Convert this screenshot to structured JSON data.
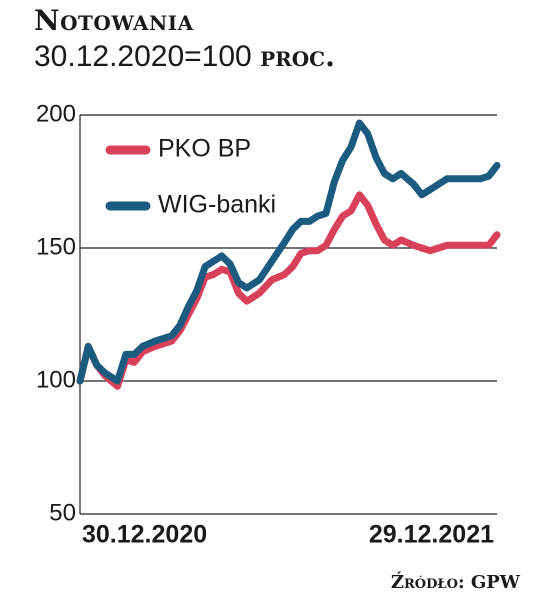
{
  "header": {
    "title": "Notowania",
    "subtitle_main": "30.12.2020=100",
    "subtitle_unit": "proc."
  },
  "source": "Źródło: GPW",
  "chart_data": {
    "type": "line",
    "xlabel": "",
    "ylabel": "",
    "ylim": [
      50,
      200
    ],
    "yticks": [
      50,
      100,
      150,
      200
    ],
    "xtick_labels": [
      "30.12.2020",
      "29.12.2021"
    ],
    "grid": "horizontal",
    "legend_position": "top-left",
    "x": [
      0,
      2,
      4,
      6,
      9,
      11,
      13,
      15,
      18,
      20,
      22,
      24,
      26,
      28,
      30,
      32,
      34,
      36,
      38,
      40,
      43,
      46,
      49,
      51,
      53,
      55,
      57,
      59,
      61,
      63,
      65,
      67,
      69,
      71,
      73,
      75,
      77,
      80,
      82,
      84,
      86,
      88,
      90,
      92,
      94,
      96,
      98,
      100
    ],
    "series": [
      {
        "name": "PKO BP",
        "color": "#d9405a",
        "values": [
          100,
          113,
          106,
          102,
          98,
          108,
          107,
          111,
          113,
          114,
          115,
          119,
          125,
          131,
          139,
          140,
          142,
          141,
          133,
          130,
          133,
          138,
          140,
          143,
          148,
          149,
          149,
          151,
          157,
          162,
          164,
          170,
          166,
          159,
          153,
          151,
          153,
          151,
          150,
          149,
          150,
          151,
          151,
          151,
          151,
          151,
          151,
          155
        ]
      },
      {
        "name": "WIG-banki",
        "color": "#1b5b80",
        "values": [
          100,
          113,
          106,
          103,
          100,
          110,
          110,
          113,
          115,
          116,
          117,
          121,
          128,
          134,
          143,
          145,
          147,
          144,
          137,
          135,
          138,
          145,
          152,
          157,
          160,
          160,
          162,
          163,
          175,
          183,
          188,
          197,
          193,
          184,
          178,
          176,
          178,
          174,
          170,
          172,
          174,
          176,
          176,
          176,
          176,
          176,
          177,
          181
        ]
      }
    ]
  }
}
